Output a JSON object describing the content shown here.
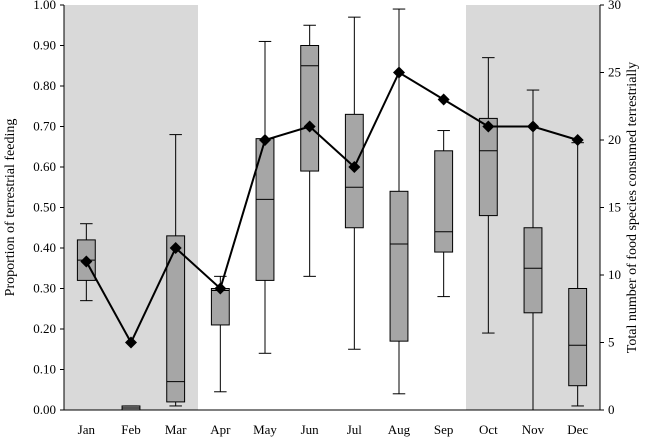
{
  "chart_data": {
    "type": "box",
    "months": [
      "Jan",
      "Feb",
      "Mar",
      "Apr",
      "May",
      "Jun",
      "Jul",
      "Aug",
      "Sep",
      "Oct",
      "Nov",
      "Dec"
    ],
    "ylabel_left": "Proportion of terrestrial feeding",
    "ylabel_right": "Total number of food species consumed terrestrially",
    "ylim_left": [
      0,
      1
    ],
    "ylim_right": [
      0,
      30
    ],
    "yticks_left": [
      "0.00",
      "0.10",
      "0.20",
      "0.30",
      "0.40",
      "0.50",
      "0.60",
      "0.70",
      "0.80",
      "0.90",
      "1.00"
    ],
    "yticks_right": [
      "0",
      "5",
      "10",
      "15",
      "20",
      "25",
      "30"
    ],
    "shaded_months": [
      "Jan",
      "Feb",
      "Mar",
      "Oct",
      "Nov",
      "Dec"
    ],
    "grid": false,
    "box_series": [
      {
        "month": "Jan",
        "min": 0.27,
        "q1": 0.32,
        "median": 0.37,
        "q3": 0.42,
        "max": 0.46
      },
      {
        "month": "Feb",
        "min": 0.0,
        "q1": 0.0,
        "median": 0.005,
        "q3": 0.01,
        "max": 0.01
      },
      {
        "month": "Mar",
        "min": 0.01,
        "q1": 0.02,
        "median": 0.07,
        "q3": 0.43,
        "max": 0.68
      },
      {
        "month": "Apr",
        "min": 0.045,
        "q1": 0.21,
        "median": 0.295,
        "q3": 0.3,
        "max": 0.33
      },
      {
        "month": "May",
        "min": 0.14,
        "q1": 0.32,
        "median": 0.52,
        "q3": 0.67,
        "max": 0.91
      },
      {
        "month": "Jun",
        "min": 0.33,
        "q1": 0.59,
        "median": 0.85,
        "q3": 0.9,
        "max": 0.95
      },
      {
        "month": "Jul",
        "min": 0.15,
        "q1": 0.45,
        "median": 0.55,
        "q3": 0.73,
        "max": 0.97
      },
      {
        "month": "Aug",
        "min": 0.04,
        "q1": 0.17,
        "median": 0.41,
        "q3": 0.54,
        "max": 0.99
      },
      {
        "month": "Sep",
        "min": 0.28,
        "q1": 0.39,
        "median": 0.44,
        "q3": 0.64,
        "max": 0.69
      },
      {
        "month": "Oct",
        "min": 0.19,
        "q1": 0.48,
        "median": 0.64,
        "q3": 0.72,
        "max": 0.87
      },
      {
        "month": "Nov",
        "min": 0.0,
        "q1": 0.24,
        "median": 0.35,
        "q3": 0.45,
        "max": 0.79
      },
      {
        "month": "Dec",
        "min": 0.01,
        "q1": 0.06,
        "median": 0.16,
        "q3": 0.3,
        "max": 0.66
      }
    ],
    "line_series": {
      "axis": "right",
      "values": [
        11,
        5,
        12,
        9,
        20,
        21,
        18,
        25,
        23,
        21,
        21,
        20
      ]
    },
    "colors": {
      "shade": "#d9d9d9",
      "box_fill": "#a6a6a6",
      "line": "#000000"
    }
  }
}
